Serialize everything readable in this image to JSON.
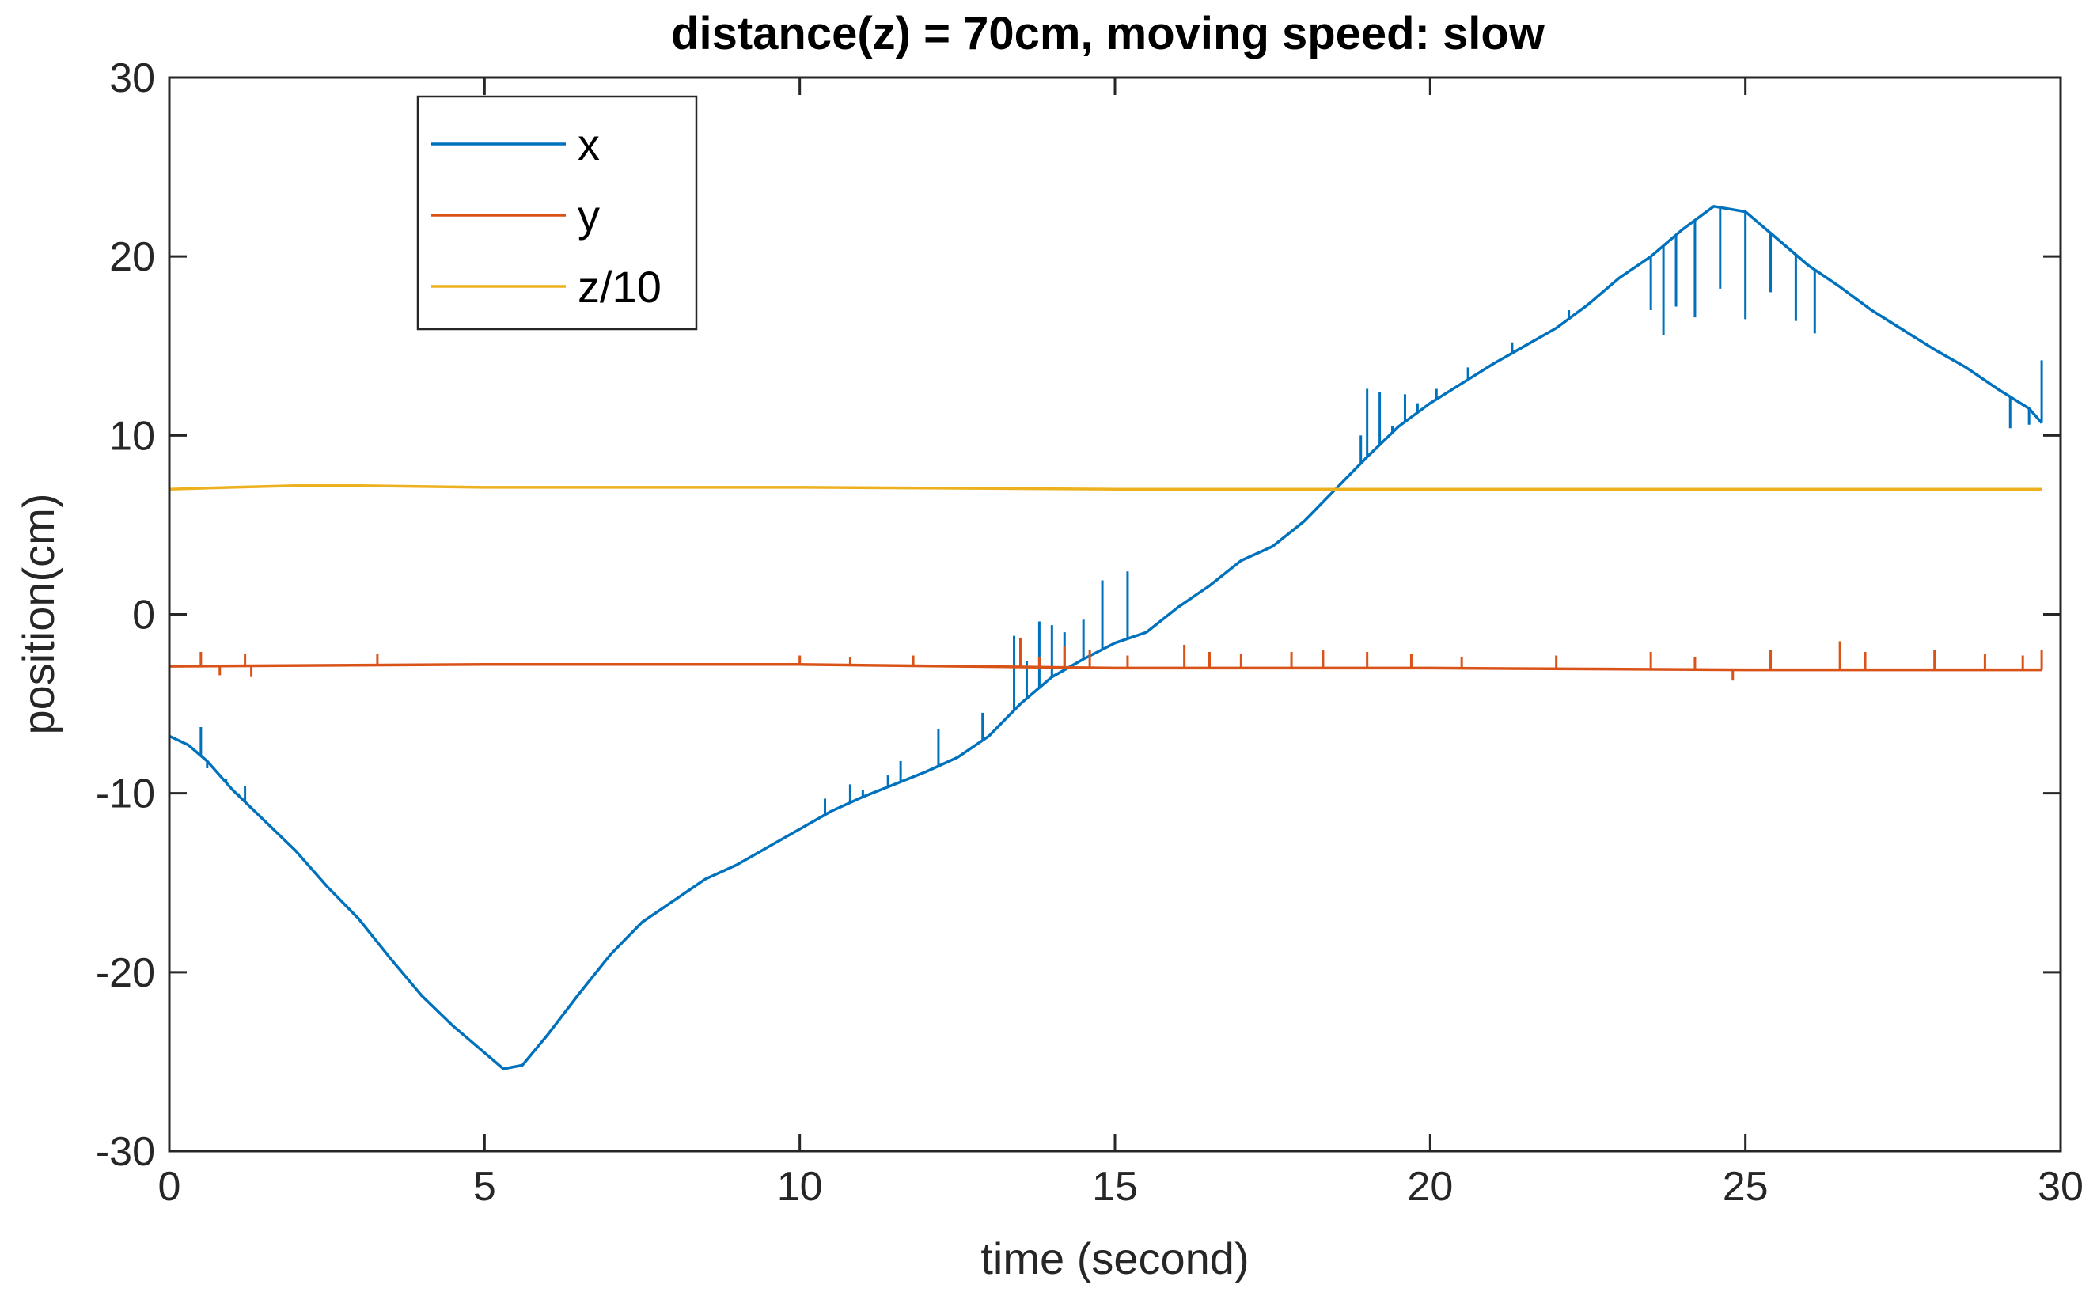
{
  "chart_data": {
    "type": "line",
    "title": "distance(z) = 70cm, moving speed: slow",
    "xlabel": "time (second)",
    "ylabel": "position(cm)",
    "xlim": [
      0,
      30
    ],
    "ylim": [
      -30,
      30
    ],
    "xticks": [
      0,
      5,
      10,
      15,
      20,
      25,
      30
    ],
    "yticks": [
      -30,
      -20,
      -10,
      0,
      10,
      20,
      30
    ],
    "grid": false,
    "legend_position": "top-left",
    "series": [
      {
        "name": "x",
        "color": "#0072BD",
        "points": [
          [
            0,
            -6.8
          ],
          [
            0.3,
            -7.3
          ],
          [
            0.6,
            -8.2
          ],
          [
            1.0,
            -9.8
          ],
          [
            1.5,
            -11.5
          ],
          [
            2.0,
            -13.2
          ],
          [
            2.5,
            -15.2
          ],
          [
            3.0,
            -17.0
          ],
          [
            3.5,
            -19.2
          ],
          [
            4.0,
            -21.3
          ],
          [
            4.5,
            -23.0
          ],
          [
            5.0,
            -24.5
          ],
          [
            5.3,
            -25.4
          ],
          [
            5.6,
            -25.2
          ],
          [
            6.0,
            -23.5
          ],
          [
            6.5,
            -21.2
          ],
          [
            7.0,
            -19.0
          ],
          [
            7.5,
            -17.2
          ],
          [
            8.0,
            -16.0
          ],
          [
            8.5,
            -14.8
          ],
          [
            9.0,
            -14.0
          ],
          [
            9.5,
            -13.0
          ],
          [
            10.0,
            -12.0
          ],
          [
            10.5,
            -11.0
          ],
          [
            11.0,
            -10.2
          ],
          [
            11.5,
            -9.5
          ],
          [
            12.0,
            -8.8
          ],
          [
            12.5,
            -8.0
          ],
          [
            13.0,
            -6.8
          ],
          [
            13.5,
            -5.0
          ],
          [
            14.0,
            -3.5
          ],
          [
            14.5,
            -2.5
          ],
          [
            15.0,
            -1.6
          ],
          [
            15.5,
            -1.0
          ],
          [
            16.0,
            0.4
          ],
          [
            16.5,
            1.6
          ],
          [
            17.0,
            3.0
          ],
          [
            17.5,
            3.8
          ],
          [
            18.0,
            5.2
          ],
          [
            18.5,
            7.0
          ],
          [
            19.0,
            8.8
          ],
          [
            19.5,
            10.5
          ],
          [
            20.0,
            11.8
          ],
          [
            20.5,
            12.9
          ],
          [
            21.0,
            14.0
          ],
          [
            21.5,
            15.0
          ],
          [
            22.0,
            16.0
          ],
          [
            22.5,
            17.3
          ],
          [
            23.0,
            18.8
          ],
          [
            23.5,
            20.0
          ],
          [
            24.0,
            21.5
          ],
          [
            24.5,
            22.8
          ],
          [
            25.0,
            22.5
          ],
          [
            25.5,
            21.0
          ],
          [
            26.0,
            19.5
          ],
          [
            26.5,
            18.3
          ],
          [
            27.0,
            17.0
          ],
          [
            27.5,
            15.9
          ],
          [
            28.0,
            14.8
          ],
          [
            28.5,
            13.8
          ],
          [
            29.0,
            12.6
          ],
          [
            29.5,
            11.5
          ],
          [
            29.7,
            10.7
          ]
        ],
        "spikes": [
          [
            0.5,
            -6.3
          ],
          [
            0.6,
            -8.6
          ],
          [
            0.9,
            -9.2
          ],
          [
            1.1,
            -10.0
          ],
          [
            1.2,
            -9.6
          ],
          [
            10.4,
            -10.3
          ],
          [
            10.8,
            -9.5
          ],
          [
            11.0,
            -9.8
          ],
          [
            11.4,
            -9.0
          ],
          [
            11.6,
            -8.2
          ],
          [
            12.2,
            -6.4
          ],
          [
            12.9,
            -5.5
          ],
          [
            13.4,
            -1.2
          ],
          [
            13.6,
            -2.6
          ],
          [
            13.8,
            -0.4
          ],
          [
            14.0,
            -0.6
          ],
          [
            14.2,
            -1.0
          ],
          [
            14.5,
            -0.3
          ],
          [
            14.8,
            1.9
          ],
          [
            15.2,
            2.4
          ],
          [
            18.9,
            10.0
          ],
          [
            19.0,
            12.6
          ],
          [
            19.2,
            12.4
          ],
          [
            19.4,
            10.5
          ],
          [
            19.6,
            12.3
          ],
          [
            19.8,
            11.8
          ],
          [
            20.1,
            12.6
          ],
          [
            20.6,
            13.8
          ],
          [
            21.3,
            15.2
          ],
          [
            22.2,
            17.0
          ],
          [
            23.5,
            17.0
          ],
          [
            23.7,
            15.6
          ],
          [
            23.9,
            17.2
          ],
          [
            24.2,
            16.6
          ],
          [
            24.6,
            18.2
          ],
          [
            25.0,
            16.5
          ],
          [
            25.4,
            18.0
          ],
          [
            25.8,
            16.4
          ],
          [
            26.1,
            15.7
          ],
          [
            29.2,
            10.4
          ],
          [
            29.5,
            10.6
          ],
          [
            29.7,
            14.2
          ]
        ]
      },
      {
        "name": "y",
        "color": "#D95319",
        "points": [
          [
            0,
            -2.9
          ],
          [
            5,
            -2.8
          ],
          [
            10,
            -2.8
          ],
          [
            15,
            -3.0
          ],
          [
            20,
            -3.0
          ],
          [
            25,
            -3.1
          ],
          [
            29.7,
            -3.1
          ]
        ],
        "spikes": [
          [
            0.5,
            -2.1
          ],
          [
            0.8,
            -3.4
          ],
          [
            1.2,
            -2.2
          ],
          [
            1.3,
            -3.5
          ],
          [
            3.3,
            -2.2
          ],
          [
            10.0,
            -2.3
          ],
          [
            10.8,
            -2.4
          ],
          [
            11.8,
            -2.3
          ],
          [
            13.5,
            -1.3
          ],
          [
            13.8,
            -2.4
          ],
          [
            14.2,
            -1.8
          ],
          [
            14.6,
            -2.0
          ],
          [
            15.2,
            -2.3
          ],
          [
            16.1,
            -1.7
          ],
          [
            16.5,
            -2.1
          ],
          [
            17.0,
            -2.2
          ],
          [
            17.8,
            -2.1
          ],
          [
            18.3,
            -2.0
          ],
          [
            19.0,
            -2.1
          ],
          [
            19.7,
            -2.2
          ],
          [
            20.5,
            -2.4
          ],
          [
            22.0,
            -2.3
          ],
          [
            23.5,
            -2.1
          ],
          [
            24.2,
            -2.4
          ],
          [
            24.8,
            -3.7
          ],
          [
            25.4,
            -2.0
          ],
          [
            26.5,
            -1.5
          ],
          [
            26.9,
            -2.1
          ],
          [
            28.0,
            -2.0
          ],
          [
            28.8,
            -2.2
          ],
          [
            29.4,
            -2.3
          ],
          [
            29.7,
            -2.0
          ]
        ]
      },
      {
        "name": "z/10",
        "color": "#EDB120",
        "points": [
          [
            0,
            7.0
          ],
          [
            1,
            7.1
          ],
          [
            2,
            7.2
          ],
          [
            3,
            7.2
          ],
          [
            5,
            7.1
          ],
          [
            10,
            7.1
          ],
          [
            15,
            7.0
          ],
          [
            20,
            7.0
          ],
          [
            25,
            7.0
          ],
          [
            29.7,
            7.0
          ]
        ],
        "spikes": []
      }
    ]
  }
}
